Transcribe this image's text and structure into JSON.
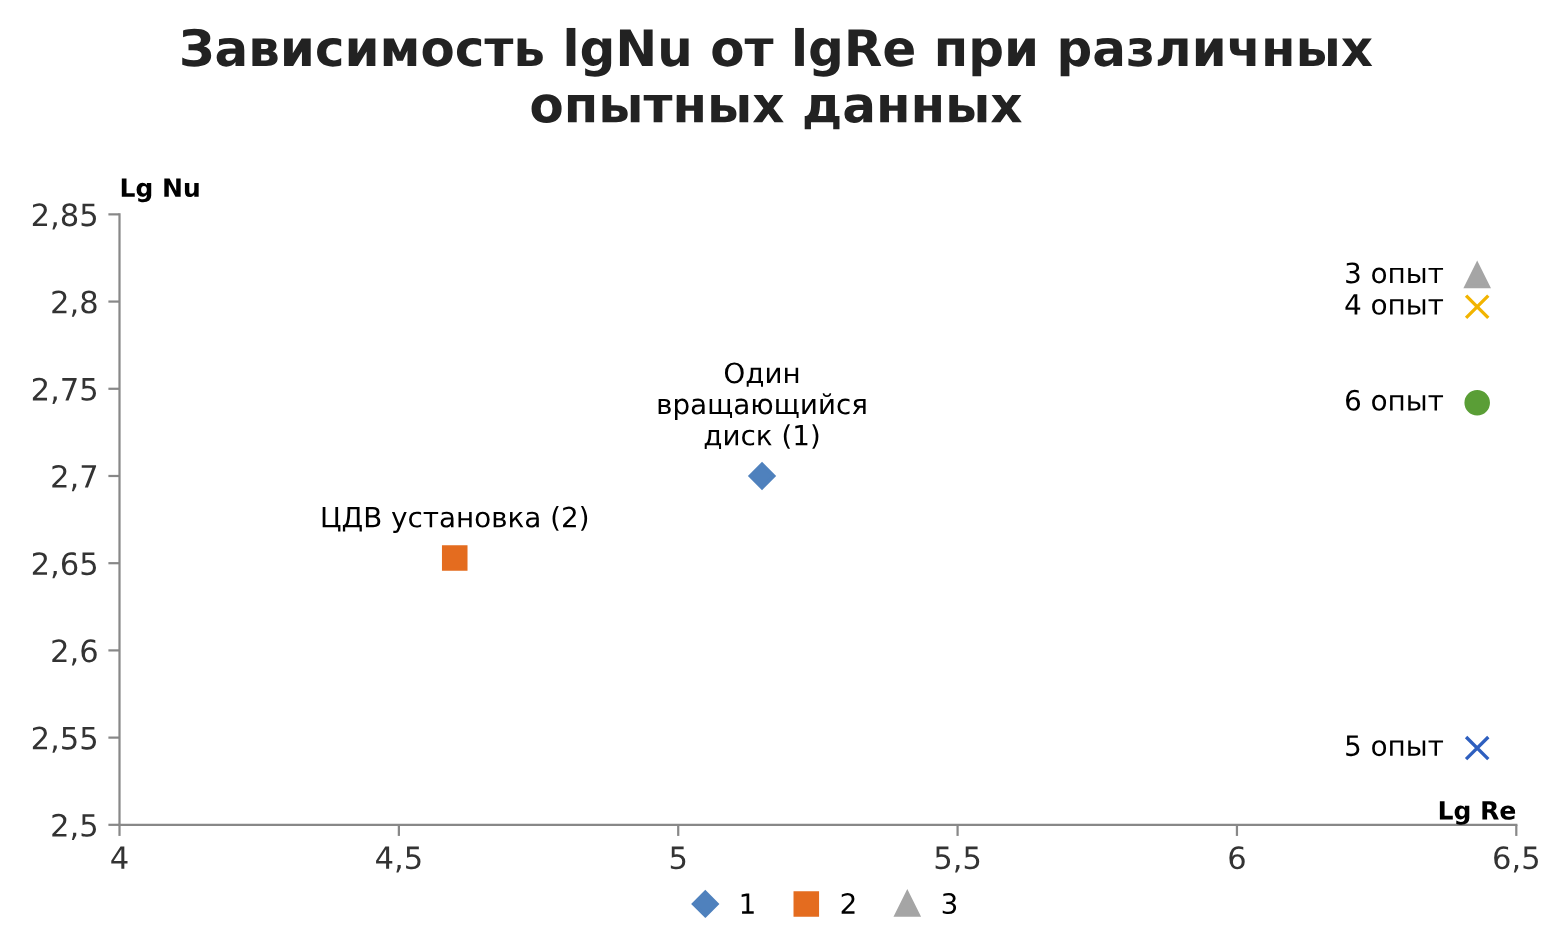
{
  "chart_data": {
    "type": "scatter",
    "title": "Зависимость lgNu от lgRe при различных\nопытных данных",
    "xlabel": "Lg Re",
    "ylabel": "Lg Nu",
    "xlim": [
      4,
      6.5
    ],
    "ylim": [
      2.5,
      2.85
    ],
    "xticks": [
      4,
      {
        "value": 4.5,
        "label": "4,5"
      },
      5,
      {
        "value": 5.5,
        "label": "5,5"
      },
      6,
      {
        "value": 6.5,
        "label": "6,5"
      }
    ],
    "yticks": [
      {
        "value": 2.5,
        "label": "2,5"
      },
      {
        "value": 2.55,
        "label": "2,55"
      },
      {
        "value": 2.6,
        "label": "2,6"
      },
      {
        "value": 2.65,
        "label": "2,65"
      },
      {
        "value": 2.7,
        "label": "2,7"
      },
      {
        "value": 2.75,
        "label": "2,75"
      },
      {
        "value": 2.8,
        "label": "2,8"
      },
      {
        "value": 2.85,
        "label": "2,85"
      }
    ],
    "grid": false,
    "legend": "bottom",
    "series": [
      {
        "name": "1",
        "color": "#4f81bd",
        "marker": "diamond",
        "x": [
          5.15
        ],
        "values": [
          2.7
        ]
      },
      {
        "name": "2",
        "color": "#e46c1f",
        "marker": "square",
        "x": [
          4.6
        ],
        "values": [
          2.653
        ]
      },
      {
        "name": "3",
        "color": "#a5a5a5",
        "marker": "triangle",
        "x": [
          6.43
        ],
        "values": [
          2.815
        ]
      },
      {
        "color": "#f2b400",
        "marker": "cross",
        "x": [
          6.43
        ],
        "values": [
          2.797
        ]
      },
      {
        "color": "#5a9e36",
        "marker": "circle",
        "x": [
          6.43
        ],
        "values": [
          2.742
        ]
      },
      {
        "color": "#2e5fbf",
        "marker": "cross",
        "x": [
          6.43
        ],
        "values": [
          2.544
        ]
      }
    ],
    "annotations": [
      {
        "text": "Один\nвращающийся\nдиск (1)",
        "x": 5.15,
        "y": 2.7
      },
      {
        "text": "ЦДВ установка (2)",
        "x": 4.6,
        "y": 2.653
      },
      {
        "text": "3 опыт",
        "x": 6.43,
        "y": 2.815
      },
      {
        "text": "4 опыт",
        "x": 6.43,
        "y": 2.797
      },
      {
        "text": "6 опыт",
        "x": 6.43,
        "y": 2.742
      },
      {
        "text": "5 опыт",
        "x": 6.43,
        "y": 2.544
      }
    ]
  }
}
